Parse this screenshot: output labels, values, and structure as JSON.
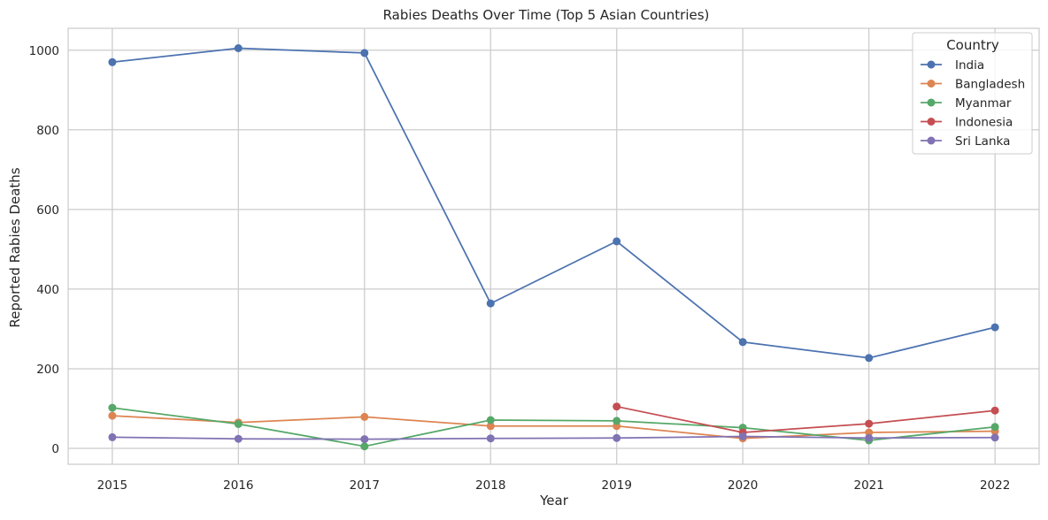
{
  "chart_data": {
    "type": "line",
    "title": "Rabies Deaths Over Time (Top 5 Asian Countries)",
    "xlabel": "Year",
    "ylabel": "Reported Rabies Deaths",
    "x": [
      2015,
      2016,
      2017,
      2018,
      2019,
      2020,
      2021,
      2022
    ],
    "x_tick_labels": [
      "2015",
      "2016",
      "2017",
      "2018",
      "2019",
      "2020",
      "2021",
      "2022"
    ],
    "y_ticks": [
      0,
      200,
      400,
      600,
      800,
      1000
    ],
    "y_tick_labels": [
      "0",
      "200",
      "400",
      "600",
      "800",
      "1000"
    ],
    "xlim": [
      2014.65,
      2022.35
    ],
    "ylim": [
      -40,
      1055
    ],
    "grid": true,
    "legend": {
      "title": "Country",
      "placement": "top-right"
    },
    "series": [
      {
        "name": "India",
        "color": "#4c72b0",
        "values": [
          970,
          1005,
          993,
          364,
          520,
          267,
          227,
          304
        ]
      },
      {
        "name": "Bangladesh",
        "color": "#dd8452",
        "values": [
          82,
          65,
          79,
          56,
          56,
          25,
          40,
          43
        ]
      },
      {
        "name": "Myanmar",
        "color": "#55a868",
        "values": [
          102,
          61,
          5,
          71,
          69,
          52,
          20,
          54
        ]
      },
      {
        "name": "Indonesia",
        "color": "#c44e52",
        "values": [
          null,
          null,
          null,
          null,
          105,
          40,
          62,
          95
        ]
      },
      {
        "name": "Sri Lanka",
        "color": "#8172b3",
        "values": [
          28,
          24,
          23,
          25,
          26,
          30,
          26,
          27
        ]
      }
    ]
  }
}
